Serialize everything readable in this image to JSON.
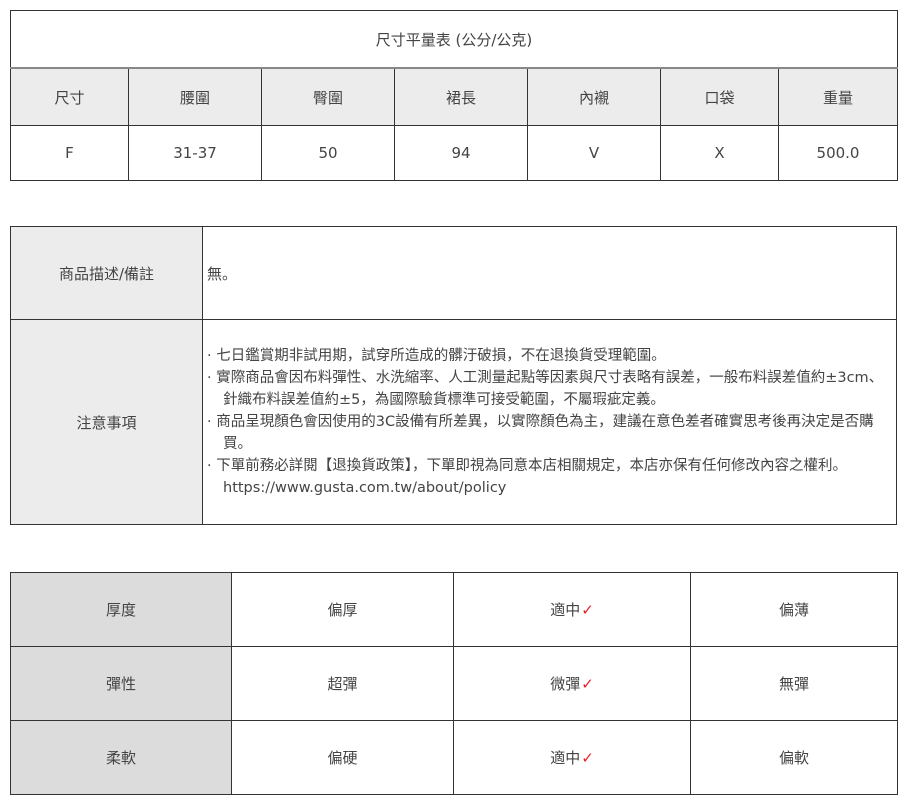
{
  "size_table": {
    "title": "尺寸平量表 (公分/公克)",
    "headers": [
      "尺寸",
      "腰圍",
      "臀圍",
      "裙長",
      "內襯",
      "口袋",
      "重量"
    ],
    "rows": [
      [
        "F",
        "31-37",
        "50",
        "94",
        "V",
        "X",
        "500.0"
      ]
    ]
  },
  "info_table": {
    "description_label": "商品描述/備註",
    "description_value": "無。",
    "notes_label": "注意事項",
    "notes": [
      "· 七日鑑賞期非試用期，試穿所造成的髒汙破損，不在退換貨受理範圍。",
      "· 實際商品會因布料彈性、水洗縮率、人工測量起點等因素與尺寸表略有誤差，一般布料誤差值約±3cm、針織布料誤差值約±5，為國際驗貨標準可接受範圍，不屬瑕疵定義。",
      "· 商品呈現顏色會因使用的3C設備有所差異，以實際顏色為主，建議在意色差者確實思考後再決定是否購買。",
      "· 下單前務必詳閱【退換貨政策】，下單即視為同意本店相關規定，本店亦保有任何修改內容之權利。https://www.gusta.com.tw/about/policy"
    ]
  },
  "feel_table": {
    "check_mark": "✓",
    "check_color": "#e8202a",
    "rows": [
      {
        "label": "厚度",
        "options": [
          "偏厚",
          "適中",
          "偏薄"
        ],
        "selected": 1
      },
      {
        "label": "彈性",
        "options": [
          "超彈",
          "微彈",
          "無彈"
        ],
        "selected": 1
      },
      {
        "label": "柔軟",
        "options": [
          "偏硬",
          "適中",
          "偏軟"
        ],
        "selected": 1
      }
    ]
  }
}
